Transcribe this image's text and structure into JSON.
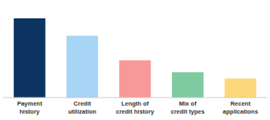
{
  "chart_data": {
    "type": "bar",
    "categories": [
      "Payment\nhistory",
      "Credit\nutilization",
      "Length of\ncredit history",
      "Mix of\ncredit types",
      "Recent\napplications"
    ],
    "values": [
      100,
      78,
      47,
      32,
      24
    ],
    "colors": [
      "#0d3461",
      "#a8d4f5",
      "#f89898",
      "#7ecba1",
      "#fcd87a"
    ],
    "ylim": [
      0,
      115
    ],
    "tick_labels": false,
    "grid": false
  }
}
